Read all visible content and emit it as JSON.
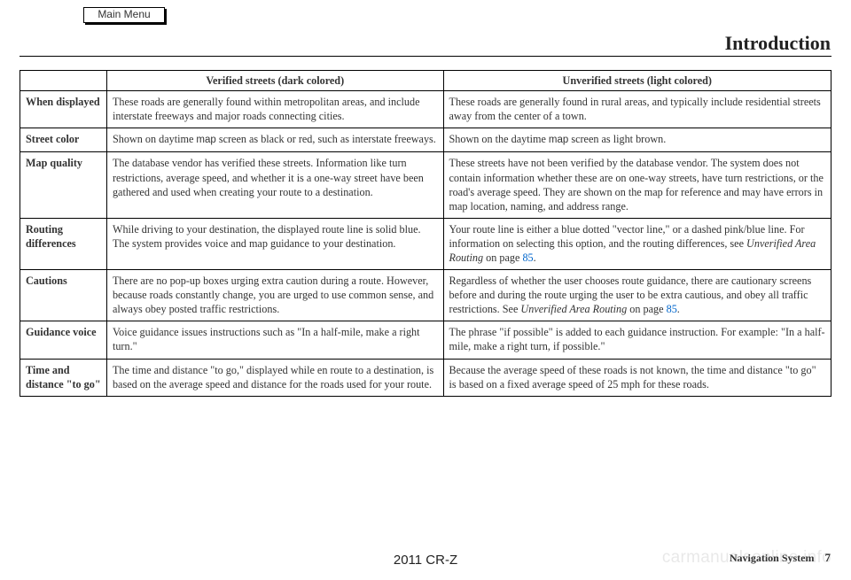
{
  "mainMenu": "Main Menu",
  "pageTitle": "Introduction",
  "headers": {
    "verified": "Verified streets (dark colored)",
    "unverified": "Unverified streets (light colored)"
  },
  "rows": [
    {
      "label": "When displayed",
      "verified": "These roads are generally found within metropolitan areas, and include interstate freeways and major roads connecting cities.",
      "unverified": "These roads are generally found in rural areas, and typically include residential streets away from the center of a town."
    },
    {
      "label": "Street color",
      "verified_pre": "Shown on daytime ",
      "verified_sans": "map",
      "verified_post": " screen as black or red, such as interstate freeways.",
      "unverified_pre": "Shown on the daytime ",
      "unverified_sans": "map",
      "unverified_post": " screen as light brown."
    },
    {
      "label": "Map quality",
      "verified": "The database vendor has verified these streets. Information like turn restrictions, average speed, and whether it is a one-way street have been gathered and used when creating your route to a destination.",
      "unverified": "These streets have not been verified by the database vendor. The system does not contain information whether these are on one-way streets, have turn restrictions, or the road's average speed. They are shown on the map for reference and may have errors in map location, naming, and address range."
    },
    {
      "label": "Routing differences",
      "verified": "While driving to your destination, the displayed route line is solid blue. The system provides voice and map guidance to your destination.",
      "unverified_pre": "Your route line is either a blue dotted \"vector line,\" or a dashed pink/blue line. For information on selecting this option, and the routing differences, see ",
      "unverified_italic": "Unverified Area Routing",
      "unverified_post": " on page ",
      "unverified_link": "85",
      "unverified_end": "."
    },
    {
      "label": "Cautions",
      "verified": "There are no pop-up boxes urging extra caution during a route. However, because roads constantly change, you are urged to use common sense, and always obey posted traffic restrictions.",
      "unverified_pre": "Regardless of whether the user chooses route guidance, there are cautionary screens before and during the route urging the user to be extra cautious, and obey all traffic restrictions. See ",
      "unverified_italic": "Unverified Area Routing",
      "unverified_post": " on page ",
      "unverified_link": "85",
      "unverified_end": "."
    },
    {
      "label": "Guidance voice",
      "verified": "Voice guidance issues instructions such as \"In a half-mile, make a right turn.\"",
      "unverified": "The phrase \"if possible\" is added to each guidance instruction. For example: \"In a half-mile, make a right turn, if possible.\""
    },
    {
      "label": "Time and distance \"to go\"",
      "verified": "The time and distance \"to go,\" displayed while en route to a destination, is based on the average speed and distance for the roads used for your route.",
      "unverified": "Because the average speed of these roads is not known, the time and distance \"to go\" is based on a fixed average speed of 25 mph for these roads."
    }
  ],
  "footer": {
    "model": "2011 CR-Z",
    "navLabel": "Navigation System",
    "pageNum": "7"
  },
  "watermark": "carmanualsonline.info"
}
